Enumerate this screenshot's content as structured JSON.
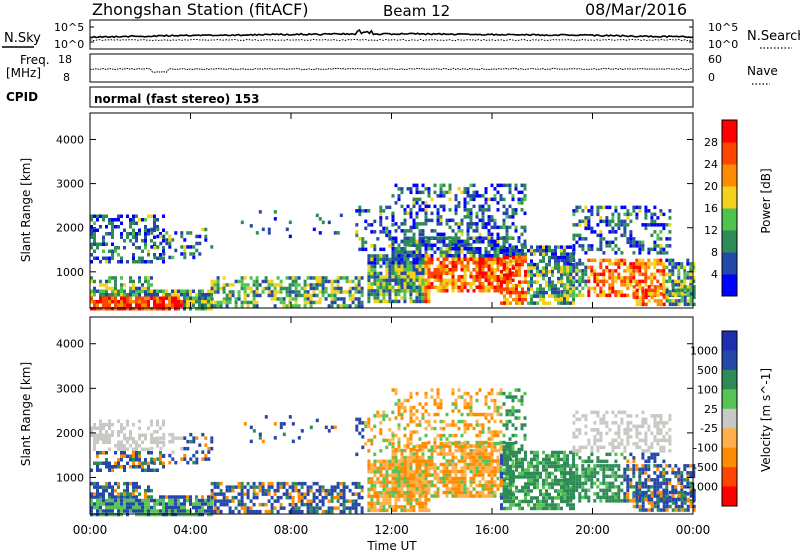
{
  "header": {
    "title": "Zhongshan Station (fitACF)",
    "beam": "Beam 12",
    "date": "08/Mar/2016"
  },
  "strip1": {
    "left_label": "N.Sky",
    "left_ticks": [
      "10^5",
      "10^0"
    ],
    "right_label": "N.Search",
    "right_ticks": [
      "10^5",
      "10^0"
    ]
  },
  "strip2": {
    "left_label_1": "Freq.",
    "left_label_2": "[MHz]",
    "left_ticks": [
      "18",
      "8"
    ],
    "right_label": "Nave",
    "right_ticks": [
      "60",
      "0"
    ]
  },
  "cpid": {
    "label": "CPID",
    "text": "normal (fast stereo) 153"
  },
  "colors": {
    "power": [
      "#0000ff",
      "#2448a8",
      "#2e8b57",
      "#4fc24f",
      "#f2d21b",
      "#ff8c00",
      "#ff4500",
      "#ff0000"
    ],
    "velocity": [
      "#ff0000",
      "#ff4500",
      "#ff8c00",
      "#ffb04a",
      "#c8c8c4",
      "#55c455",
      "#2e8b57",
      "#2447a8",
      "#1c2fb0"
    ]
  },
  "chart_data": [
    {
      "type": "heatmap",
      "title": "Power",
      "ylabel": "Slant Range [km]",
      "xlabel": "Time UT",
      "x_ticks": [
        "00:00",
        "04:00",
        "08:00",
        "12:00",
        "16:00",
        "20:00",
        "00:00"
      ],
      "y_ticks": [
        "1000",
        "2000",
        "3000",
        "4000"
      ],
      "ylim": [
        180,
        4600
      ],
      "colorbar": {
        "label": "Power [dB]",
        "ticks": [
          "4",
          "8",
          "12",
          "16",
          "20",
          "24",
          "28"
        ],
        "range": [
          0,
          32
        ]
      }
    },
    {
      "type": "heatmap",
      "title": "Velocity",
      "ylabel": "Slant Range [km]",
      "xlabel": "Time UT",
      "x_ticks": [
        "00:00",
        "04:00",
        "08:00",
        "12:00",
        "16:00",
        "20:00",
        "00:00"
      ],
      "y_ticks": [
        "1000",
        "2000",
        "3000",
        "4000"
      ],
      "ylim": [
        180,
        4600
      ],
      "colorbar": {
        "label": "Velocity [m s^-1]",
        "ticks": [
          "1000",
          "500",
          "100",
          "25",
          "-25",
          "-100",
          "-500",
          "-1000"
        ]
      }
    }
  ]
}
